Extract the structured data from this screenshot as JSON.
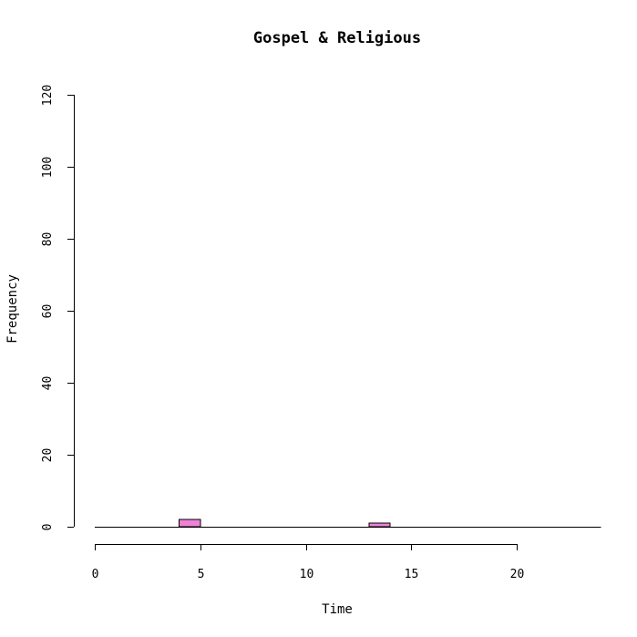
{
  "chart_data": {
    "type": "bar",
    "title": "Gospel & Religious",
    "xlabel": "Time",
    "ylabel": "Frequency",
    "xlim": [
      0,
      24
    ],
    "ylim": [
      0,
      120
    ],
    "x_ticks": [
      "0",
      "5",
      "10",
      "15",
      "20"
    ],
    "y_ticks": [
      "0",
      "20",
      "40",
      "60",
      "80",
      "100",
      "120"
    ],
    "bar_color": "#ee82d6",
    "bin_width": 1,
    "bins": [
      {
        "start": 0,
        "end": 1,
        "value": 0
      },
      {
        "start": 1,
        "end": 2,
        "value": 0
      },
      {
        "start": 2,
        "end": 3,
        "value": 0
      },
      {
        "start": 3,
        "end": 4,
        "value": 0
      },
      {
        "start": 4,
        "end": 5,
        "value": 2
      },
      {
        "start": 5,
        "end": 6,
        "value": 0
      },
      {
        "start": 6,
        "end": 7,
        "value": 0
      },
      {
        "start": 7,
        "end": 8,
        "value": 0
      },
      {
        "start": 8,
        "end": 9,
        "value": 0
      },
      {
        "start": 9,
        "end": 10,
        "value": 0
      },
      {
        "start": 10,
        "end": 11,
        "value": 0
      },
      {
        "start": 11,
        "end": 12,
        "value": 0
      },
      {
        "start": 12,
        "end": 13,
        "value": 0
      },
      {
        "start": 13,
        "end": 14,
        "value": 1
      },
      {
        "start": 14,
        "end": 15,
        "value": 0
      },
      {
        "start": 15,
        "end": 16,
        "value": 0
      },
      {
        "start": 16,
        "end": 17,
        "value": 0
      },
      {
        "start": 17,
        "end": 18,
        "value": 0
      },
      {
        "start": 18,
        "end": 19,
        "value": 0
      },
      {
        "start": 19,
        "end": 20,
        "value": 0
      },
      {
        "start": 20,
        "end": 21,
        "value": 0
      },
      {
        "start": 21,
        "end": 22,
        "value": 0
      },
      {
        "start": 22,
        "end": 23,
        "value": 0
      },
      {
        "start": 23,
        "end": 24,
        "value": 0
      }
    ]
  }
}
